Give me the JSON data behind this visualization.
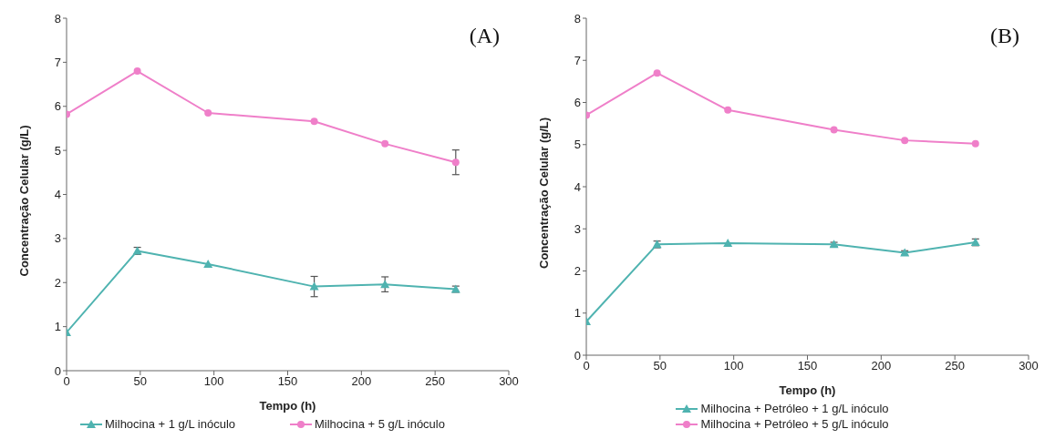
{
  "chart_data": [
    {
      "type": "line",
      "xlabel": "Tempo (h)",
      "ylabel": "Concentração Celular (g/L)",
      "annotations": [
        "(A)"
      ],
      "xlim": [
        0,
        300
      ],
      "xticks": [
        0,
        50,
        100,
        150,
        200,
        250,
        300
      ],
      "ylim": [
        0,
        8
      ],
      "yticks": [
        0,
        1,
        2,
        3,
        4,
        5,
        6,
        7,
        8
      ],
      "grid": false,
      "legend": "bottom",
      "x": [
        0,
        48,
        96,
        168,
        216,
        264
      ],
      "series": [
        {
          "name": "Milhocina + 1 g/L inóculo",
          "color": "#4fb3b0",
          "marker": "triangle",
          "values": [
            0.87,
            2.72,
            2.42,
            1.91,
            1.96,
            1.85
          ],
          "errors": [
            null,
            0.08,
            null,
            0.23,
            0.17,
            0.07
          ]
        },
        {
          "name": "Milhocina + 5 g/L inóculo",
          "color": "#ef7fc9",
          "marker": "circle",
          "values": [
            5.82,
            6.8,
            5.85,
            5.66,
            5.15,
            4.73
          ],
          "errors": [
            null,
            null,
            null,
            null,
            null,
            0.28
          ]
        }
      ]
    },
    {
      "type": "line",
      "xlabel": "Tempo (h)",
      "ylabel": "Concentração Celular (g/L)",
      "annotations": [
        "(B)"
      ],
      "xlim": [
        0,
        300
      ],
      "xticks": [
        0,
        50,
        100,
        150,
        200,
        250,
        300
      ],
      "ylim": [
        0,
        8
      ],
      "yticks": [
        0,
        1,
        2,
        3,
        4,
        5,
        6,
        7,
        8
      ],
      "grid": false,
      "legend": "bottom",
      "x": [
        0,
        48,
        96,
        168,
        216,
        264
      ],
      "series": [
        {
          "name": "Milhocina + Petróleo + 1 g/L inóculo",
          "color": "#4fb3b0",
          "marker": "triangle",
          "values": [
            0.8,
            2.63,
            2.66,
            2.63,
            2.43,
            2.68
          ],
          "errors": [
            null,
            0.08,
            null,
            0.05,
            0.05,
            0.08
          ]
        },
        {
          "name": "Milhocina + Petróleo + 5 g/L inóculo",
          "color": "#ef7fc9",
          "marker": "circle",
          "values": [
            5.7,
            6.7,
            5.82,
            5.35,
            5.1,
            5.02
          ]
        }
      ]
    }
  ]
}
